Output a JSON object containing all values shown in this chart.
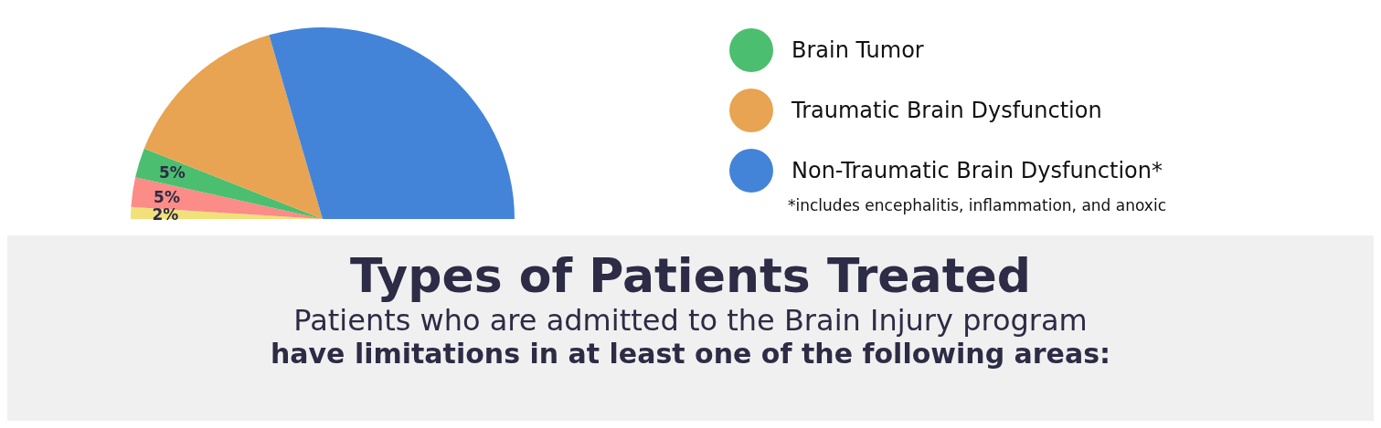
{
  "chart_data": {
    "type": "pie",
    "title": "Types of Patients Treated",
    "subtitle": "Patients who are admitted to the Brain Injury program",
    "categories": [
      null,
      null,
      "Brain Tumor",
      "Traumatic Brain Dysfunction",
      "Non-Traumatic Brain Dysfunction*"
    ],
    "values": [
      2,
      5,
      5,
      29,
      59
    ],
    "colors": [
      "#f0e17a",
      "#fb8c87",
      "#4bbf6f",
      "#e8a452",
      "#4384d8"
    ],
    "value_labels": [
      "2%",
      "5%",
      "5%",
      null,
      null
    ],
    "legend": "right",
    "annotations": [
      "*includes encephalitis, inflammation, and anoxic",
      "have limitations in at least one of the following areas:"
    ]
  }
}
